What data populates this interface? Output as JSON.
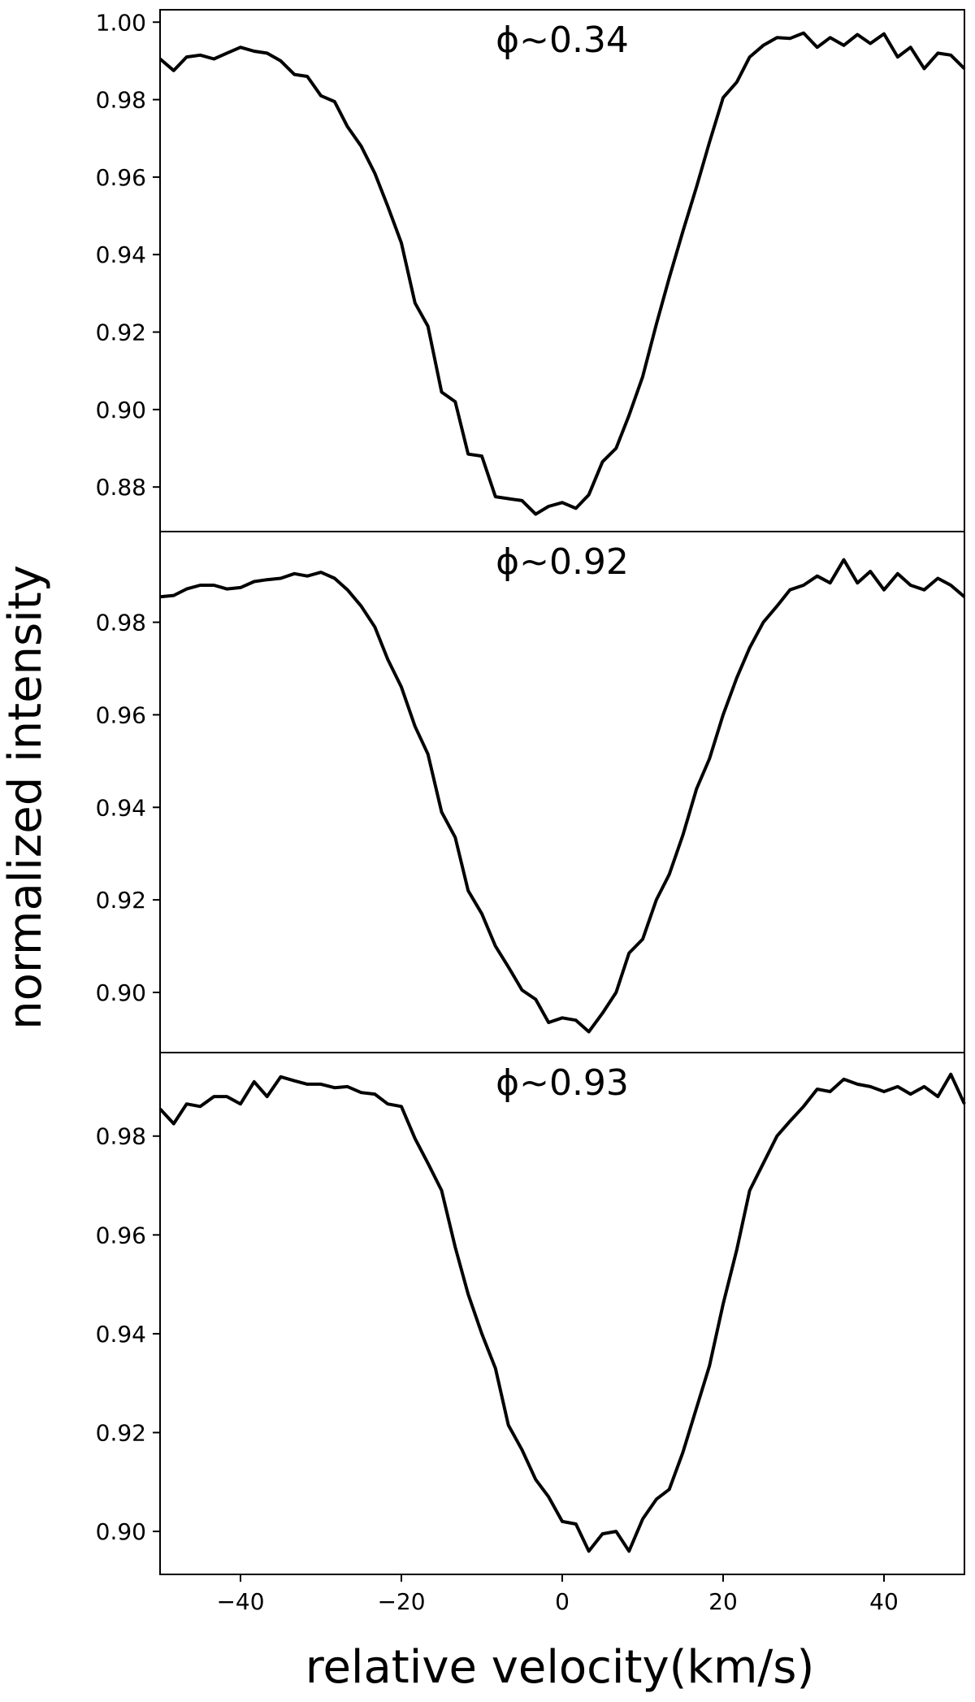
{
  "figure": {
    "ylabel": "normalized intensity",
    "xlabel": "relative velocity(km/s)"
  },
  "colors": {
    "line": "#000000",
    "frame": "#000000",
    "background": "#ffffff"
  },
  "chart_data": [
    {
      "type": "line",
      "annotation": "ϕ~0.34",
      "xlim": [
        -50,
        50
      ],
      "ylim": [
        0.8685,
        1.0032
      ],
      "grid": false,
      "x_ticks": [],
      "x_tick_labels": [],
      "y_ticks": [
        0.88,
        0.9,
        0.92,
        0.94,
        0.96,
        0.98,
        1.0
      ],
      "y_tick_labels": [
        "0.88",
        "0.90",
        "0.92",
        "0.94",
        "0.96",
        "0.98",
        "1.00"
      ],
      "series": [
        {
          "x": [
            -50,
            -48.3,
            -46.7,
            -45.0,
            -43.3,
            -41.7,
            -40.0,
            -38.3,
            -36.7,
            -35.0,
            -33.3,
            -31.7,
            -30.0,
            -28.3,
            -26.7,
            -25.0,
            -23.3,
            -21.7,
            -20.0,
            -18.3,
            -16.7,
            -15.0,
            -13.3,
            -11.7,
            -10.0,
            -8.3,
            -6.7,
            -5.0,
            -3.3,
            -1.7,
            0.0,
            1.7,
            3.3,
            5.0,
            6.7,
            8.3,
            10.0,
            11.7,
            13.3,
            15.0,
            16.7,
            18.3,
            20.0,
            21.7,
            23.3,
            25.0,
            26.7,
            28.3,
            30.0,
            31.7,
            33.3,
            35.0,
            36.7,
            38.3,
            40.0,
            41.7,
            43.3,
            45.0,
            46.7,
            48.3,
            50.0
          ],
          "y": [
            0.9905,
            0.9875,
            0.991,
            0.9915,
            0.9905,
            0.992,
            0.9935,
            0.9925,
            0.992,
            0.99,
            0.9865,
            0.986,
            0.981,
            0.9795,
            0.973,
            0.968,
            0.961,
            0.9525,
            0.943,
            0.9275,
            0.9215,
            0.9045,
            0.902,
            0.8885,
            0.888,
            0.8775,
            0.877,
            0.8765,
            0.873,
            0.875,
            0.876,
            0.8745,
            0.878,
            0.8865,
            0.89,
            0.8985,
            0.9085,
            0.922,
            0.934,
            0.946,
            0.9575,
            0.969,
            0.9805,
            0.9845,
            0.991,
            0.994,
            0.996,
            0.9958,
            0.9972,
            0.9935,
            0.996,
            0.994,
            0.9968,
            0.9945,
            0.997,
            0.991,
            0.9935,
            0.988,
            0.992,
            0.9915,
            0.988
          ]
        }
      ]
    },
    {
      "type": "line",
      "annotation": "ϕ~0.92",
      "xlim": [
        -50,
        50
      ],
      "ylim": [
        0.887,
        0.9996
      ],
      "grid": false,
      "x_ticks": [],
      "x_tick_labels": [],
      "y_ticks": [
        0.9,
        0.92,
        0.94,
        0.96,
        0.98
      ],
      "y_tick_labels": [
        "0.90",
        "0.92",
        "0.94",
        "0.96",
        "0.98"
      ],
      "series": [
        {
          "x": [
            -50,
            -48.3,
            -46.7,
            -45.0,
            -43.3,
            -41.7,
            -40.0,
            -38.3,
            -36.7,
            -35.0,
            -33.3,
            -31.7,
            -30.0,
            -28.3,
            -26.7,
            -25.0,
            -23.3,
            -21.7,
            -20.0,
            -18.3,
            -16.7,
            -15.0,
            -13.3,
            -11.7,
            -10.0,
            -8.3,
            -6.7,
            -5.0,
            -3.3,
            -1.7,
            0.0,
            1.7,
            3.3,
            5.0,
            6.7,
            8.3,
            10.0,
            11.7,
            13.3,
            15.0,
            16.7,
            18.3,
            20.0,
            21.7,
            23.3,
            25.0,
            26.7,
            28.3,
            30.0,
            31.7,
            33.3,
            35.0,
            36.7,
            38.3,
            40.0,
            41.7,
            43.3,
            45.0,
            46.7,
            48.3,
            50.0
          ],
          "y": [
            0.9855,
            0.9858,
            0.9872,
            0.988,
            0.988,
            0.9872,
            0.9875,
            0.9888,
            0.9892,
            0.9895,
            0.9905,
            0.99,
            0.9908,
            0.9895,
            0.987,
            0.9835,
            0.979,
            0.972,
            0.966,
            0.9575,
            0.9515,
            0.939,
            0.9335,
            0.922,
            0.917,
            0.91,
            0.9055,
            0.9005,
            0.8985,
            0.8935,
            0.8945,
            0.894,
            0.8915,
            0.8955,
            0.9,
            0.9085,
            0.9115,
            0.92,
            0.9255,
            0.934,
            0.944,
            0.9505,
            0.96,
            0.968,
            0.9745,
            0.98,
            0.9835,
            0.987,
            0.988,
            0.99,
            0.9885,
            0.9935,
            0.9885,
            0.991,
            0.987,
            0.9905,
            0.988,
            0.987,
            0.9895,
            0.988,
            0.9855
          ]
        }
      ]
    },
    {
      "type": "line",
      "annotation": "ϕ~0.93",
      "xlim": [
        -50,
        50
      ],
      "ylim": [
        0.8913,
        0.9969
      ],
      "grid": false,
      "x_ticks": [
        -40,
        -20,
        0,
        20,
        40
      ],
      "x_tick_labels": [
        "−40",
        "−20",
        "0",
        "20",
        "40"
      ],
      "y_ticks": [
        0.9,
        0.92,
        0.94,
        0.96,
        0.98
      ],
      "y_tick_labels": [
        "0.90",
        "0.92",
        "0.94",
        "0.96",
        "0.98"
      ],
      "series": [
        {
          "x": [
            -50,
            -48.3,
            -46.7,
            -45.0,
            -43.3,
            -41.7,
            -40.0,
            -38.3,
            -36.7,
            -35.0,
            -33.3,
            -31.7,
            -30.0,
            -28.3,
            -26.7,
            -25.0,
            -23.3,
            -21.7,
            -20.0,
            -18.3,
            -16.7,
            -15.0,
            -13.3,
            -11.7,
            -10.0,
            -8.3,
            -6.7,
            -5.0,
            -3.3,
            -1.7,
            0.0,
            1.7,
            3.3,
            5.0,
            6.7,
            8.3,
            10.0,
            11.7,
            13.3,
            15.0,
            16.7,
            18.3,
            20.0,
            21.7,
            23.3,
            25.0,
            26.7,
            28.3,
            30.0,
            31.7,
            33.3,
            35.0,
            36.7,
            38.3,
            40.0,
            41.7,
            43.3,
            45.0,
            46.7,
            48.3,
            50.0
          ],
          "y": [
            0.9855,
            0.9825,
            0.9865,
            0.986,
            0.988,
            0.988,
            0.9865,
            0.991,
            0.988,
            0.992,
            0.9912,
            0.9905,
            0.9905,
            0.9898,
            0.99,
            0.9888,
            0.9885,
            0.9865,
            0.986,
            0.9795,
            0.9745,
            0.969,
            0.9575,
            0.948,
            0.94,
            0.933,
            0.9215,
            0.9165,
            0.9105,
            0.907,
            0.902,
            0.9015,
            0.896,
            0.8995,
            0.9,
            0.896,
            0.9025,
            0.9065,
            0.9085,
            0.916,
            0.925,
            0.9335,
            0.946,
            0.957,
            0.969,
            0.9745,
            0.98,
            0.983,
            0.986,
            0.9895,
            0.989,
            0.9915,
            0.9905,
            0.99,
            0.989,
            0.99,
            0.9885,
            0.99,
            0.988,
            0.9925,
            0.9865
          ]
        }
      ]
    }
  ]
}
